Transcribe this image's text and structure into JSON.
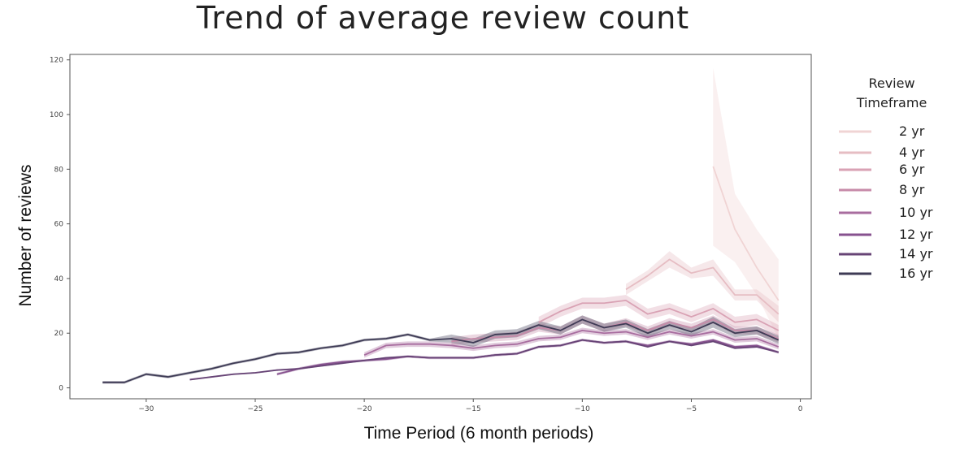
{
  "chart_data": {
    "type": "line",
    "title": "Trend of average review count",
    "xlabel": "Time Period (6 month periods)",
    "ylabel": "Number of reviews",
    "xlim": [
      -33.5,
      0.5
    ],
    "ylim": [
      -4,
      122
    ],
    "x_ticks": [
      -30,
      -25,
      -20,
      -15,
      -10,
      -5,
      0
    ],
    "y_ticks": [
      0,
      20,
      40,
      60,
      80,
      100,
      120
    ],
    "grid": false,
    "legend": {
      "title_line1": "Review",
      "title_line2": "Timeframe",
      "placement": "right outside"
    },
    "series": [
      {
        "name": "2 yr",
        "color": "#f0d4d4",
        "x": [
          -4,
          -3,
          -2,
          -1
        ],
        "y": [
          81,
          58,
          44,
          32
        ],
        "lower": [
          52,
          46,
          34,
          18
        ],
        "upper": [
          117,
          71,
          58,
          47
        ]
      },
      {
        "name": "4 yr",
        "color": "#e6bdc3",
        "x": [
          -8,
          -7,
          -6,
          -5,
          -4,
          -3,
          -2,
          -1
        ],
        "y": [
          36,
          41,
          47,
          42,
          44,
          34,
          34,
          27
        ],
        "lower": [
          34,
          39,
          44,
          40,
          41,
          32,
          32,
          24
        ],
        "upper": [
          38,
          43,
          50,
          44,
          47,
          36,
          36,
          30
        ]
      },
      {
        "name": "6 yr",
        "color": "#d9a2b4",
        "x": [
          -12,
          -11,
          -10,
          -9,
          -8,
          -7,
          -6,
          -5,
          -4,
          -3,
          -2,
          -1
        ],
        "y": [
          24,
          28,
          31,
          31,
          32,
          27,
          29,
          26,
          29,
          24,
          25,
          21
        ],
        "lower": [
          22,
          26,
          29,
          29,
          30,
          25,
          27,
          24,
          27,
          22,
          23,
          19
        ],
        "upper": [
          26,
          30,
          33,
          33,
          34,
          29,
          31,
          28,
          31,
          26,
          27,
          23
        ]
      },
      {
        "name": "8 yr",
        "color": "#c78ba9",
        "x": [
          -16,
          -15,
          -14,
          -13,
          -12,
          -11,
          -10,
          -9,
          -8,
          -7,
          -6,
          -5,
          -4,
          -3,
          -2,
          -1
        ],
        "y": [
          17,
          18,
          18.5,
          19,
          22,
          21,
          25,
          22,
          24,
          21,
          24,
          22,
          25,
          21,
          21,
          18
        ],
        "lower": [
          15.5,
          16.5,
          17,
          17.5,
          20.5,
          19.5,
          23.5,
          20.5,
          22.5,
          19.5,
          22.5,
          20.5,
          23.5,
          19.5,
          19.5,
          16.5
        ],
        "upper": [
          18.5,
          19.5,
          20,
          20.5,
          23.5,
          22.5,
          26.5,
          23.5,
          25.5,
          22.5,
          25.5,
          23.5,
          26.5,
          22.5,
          22.5,
          19.5
        ]
      },
      {
        "name": "10 yr",
        "color": "#a86d9f",
        "x": [
          -20,
          -19,
          -18,
          -17,
          -16,
          -15,
          -14,
          -13,
          -12,
          -11,
          -10,
          -9,
          -8,
          -7,
          -6,
          -5,
          -4,
          -3,
          -2,
          -1
        ],
        "y": [
          12,
          15.5,
          16,
          16,
          15.5,
          14.5,
          15.5,
          16,
          18,
          18.5,
          21,
          20,
          20.5,
          18.5,
          20.5,
          19,
          20.5,
          17.5,
          18,
          15
        ],
        "lower": [
          11,
          14.5,
          15,
          15,
          14.5,
          13.5,
          14.5,
          15,
          17,
          17.5,
          20,
          19,
          19.5,
          17.5,
          19.5,
          18,
          19.5,
          16.5,
          17,
          14
        ],
        "upper": [
          13,
          16.5,
          17,
          17,
          16.5,
          15.5,
          16.5,
          17,
          19,
          19.5,
          22,
          21,
          21.5,
          19.5,
          21.5,
          20,
          21.5,
          18.5,
          19,
          16
        ]
      },
      {
        "name": "12 yr",
        "color": "#87528f",
        "x": [
          -24,
          -23,
          -22,
          -21,
          -20,
          -19,
          -18,
          -17,
          -16,
          -15,
          -14,
          -13,
          -12,
          -11,
          -10,
          -9,
          -8,
          -7,
          -6,
          -5,
          -4,
          -3,
          -2,
          -1
        ],
        "y": [
          5,
          7,
          8.5,
          9.5,
          10,
          10.5,
          11.5,
          11,
          11,
          11,
          12,
          12.5,
          15,
          15.5,
          17.5,
          16.5,
          17,
          15.5,
          17,
          16,
          17.5,
          15,
          15.5,
          13
        ],
        "lower": [
          4.5,
          6.5,
          8,
          9,
          9.5,
          10,
          11,
          10.5,
          10.5,
          10.5,
          11.5,
          12,
          14.5,
          15,
          17,
          16,
          16.5,
          15,
          16.5,
          15.5,
          17,
          14.5,
          15,
          12.5
        ],
        "upper": [
          5.5,
          7.5,
          9,
          10,
          10.5,
          11,
          12,
          11.5,
          11.5,
          11.5,
          12.5,
          13,
          15.5,
          16,
          18,
          17,
          17.5,
          16,
          17.5,
          16.5,
          18,
          15.5,
          16,
          13.5
        ]
      },
      {
        "name": "14 yr",
        "color": "#674476",
        "x": [
          -28,
          -27,
          -26,
          -25,
          -24,
          -23,
          -22,
          -21,
          -20,
          -19,
          -18,
          -17,
          -16,
          -15,
          -14,
          -13,
          -12,
          -11,
          -10,
          -9,
          -8,
          -7,
          -6,
          -5,
          -4,
          -3,
          -2,
          -1
        ],
        "y": [
          3,
          4,
          5,
          5.5,
          6.5,
          7,
          8,
          9,
          10,
          11,
          11.5,
          11,
          11,
          11,
          12,
          12.5,
          15,
          15.5,
          17.5,
          16.5,
          17,
          15,
          17,
          15.5,
          17,
          14.5,
          15,
          13
        ],
        "lower": [
          2.7,
          3.7,
          4.7,
          5.2,
          6.2,
          6.7,
          7.7,
          8.7,
          9.7,
          10.7,
          11.2,
          10.7,
          10.7,
          10.7,
          11.7,
          12.2,
          14.7,
          15.2,
          17.2,
          16.2,
          16.7,
          14.7,
          16.7,
          15.2,
          16.7,
          14.2,
          14.7,
          12.7
        ],
        "upper": [
          3.3,
          4.3,
          5.3,
          5.8,
          6.8,
          7.3,
          8.3,
          9.3,
          10.3,
          11.3,
          11.8,
          11.3,
          11.3,
          11.3,
          12.3,
          12.8,
          15.3,
          15.8,
          17.8,
          16.8,
          17.3,
          15.3,
          17.3,
          15.8,
          17.3,
          14.8,
          15.3,
          13.3
        ]
      },
      {
        "name": "16 yr",
        "color": "#3e3b55",
        "x": [
          -32,
          -31,
          -30,
          -29,
          -28,
          -27,
          -26,
          -25,
          -24,
          -23,
          -22,
          -21,
          -20,
          -19,
          -18,
          -17,
          -16,
          -15,
          -14,
          -13,
          -12,
          -11,
          -10,
          -9,
          -8,
          -7,
          -6,
          -5,
          -4,
          -3,
          -2,
          -1
        ],
        "y": [
          2,
          2,
          5,
          4,
          5.5,
          7,
          9,
          10.5,
          12.5,
          13,
          14.5,
          15.5,
          17.5,
          18,
          19.5,
          17.5,
          18,
          16.5,
          19.5,
          20,
          23,
          21,
          25,
          22,
          23.5,
          20,
          23,
          20.5,
          24,
          20,
          21,
          17.5
        ],
        "lower": [
          1.5,
          1.5,
          4.5,
          3.5,
          5,
          6.5,
          8.5,
          10,
          12,
          12.5,
          14,
          15,
          17,
          17.5,
          19,
          17,
          16.5,
          15,
          18,
          18.5,
          21.5,
          19.5,
          23.5,
          20.5,
          22,
          18.5,
          21.5,
          19,
          22,
          18.5,
          19.5,
          16
        ],
        "upper": [
          2.5,
          2.5,
          5.5,
          4.5,
          6,
          7.5,
          9.5,
          11,
          13,
          13.5,
          15,
          16,
          18,
          18.5,
          20,
          18,
          19.5,
          18,
          21,
          21.5,
          24.5,
          22.5,
          26.5,
          23.5,
          25,
          21.5,
          24.5,
          22,
          26,
          21.5,
          22.5,
          19
        ]
      }
    ]
  }
}
